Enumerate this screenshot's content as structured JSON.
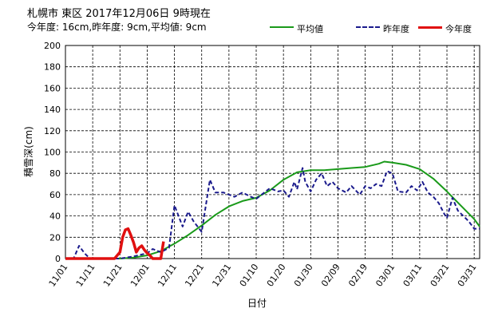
{
  "header": {
    "title": "札幌市  東区  2017年12月06日 9時現在",
    "subtitle": "今年度: 16cm,昨年度:  9cm,平均値:  9cm"
  },
  "colors": {
    "average": "#1a9a1a",
    "last_year": "#1a1a8c",
    "this_year": "#e01010",
    "grid": "#000000"
  },
  "chart_data": {
    "type": "line",
    "title": "",
    "ylabel": "積雪深(cm)",
    "xlabel": "日付",
    "ylim": [
      0,
      200
    ],
    "yticks": [
      0,
      20,
      40,
      60,
      80,
      100,
      120,
      140,
      160,
      180,
      200
    ],
    "xticks": [
      "11/01",
      "11/11",
      "11/21",
      "12/01",
      "12/11",
      "12/21",
      "12/31",
      "01/10",
      "01/20",
      "01/30",
      "02/09",
      "02/19",
      "03/01",
      "03/11",
      "03/21",
      "03/31"
    ],
    "xlim_days": [
      0,
      152
    ],
    "legend": [
      "平均値",
      "昨年度",
      "今年度"
    ],
    "series": [
      {
        "name": "平均値",
        "style": "solid",
        "x": [
          0,
          20,
          25,
          30,
          35,
          40,
          45,
          50,
          55,
          60,
          65,
          70,
          75,
          80,
          85,
          90,
          95,
          100,
          105,
          110,
          115,
          117,
          120,
          125,
          130,
          135,
          140,
          145,
          150,
          152
        ],
        "y": [
          0,
          0,
          1,
          3,
          7,
          14,
          22,
          31,
          41,
          49,
          54,
          57,
          64,
          74,
          81,
          83,
          83,
          84,
          85,
          86,
          89,
          91,
          90,
          88,
          84,
          75,
          63,
          50,
          37,
          30
        ]
      },
      {
        "name": "昨年度",
        "style": "dashed",
        "x": [
          0,
          3,
          5,
          7,
          9,
          11,
          20,
          25,
          30,
          32,
          35,
          38,
          40,
          43,
          45,
          47,
          50,
          53,
          55,
          58,
          62,
          65,
          68,
          70,
          72,
          75,
          78,
          80,
          82,
          84,
          85,
          87,
          88,
          90,
          92,
          94,
          96,
          98,
          100,
          103,
          105,
          108,
          110,
          112,
          114,
          116,
          118,
          120,
          122,
          125,
          127,
          129,
          131,
          133,
          135,
          137,
          139,
          140,
          142,
          144,
          146,
          148,
          150,
          152
        ],
        "y": [
          0,
          0,
          12,
          5,
          0,
          0,
          0,
          2,
          5,
          9,
          6,
          10,
          50,
          30,
          44,
          35,
          25,
          74,
          62,
          62,
          58,
          62,
          58,
          56,
          60,
          66,
          63,
          64,
          58,
          72,
          65,
          85,
          72,
          63,
          74,
          80,
          68,
          72,
          66,
          62,
          68,
          60,
          68,
          66,
          70,
          68,
          82,
          80,
          63,
          62,
          68,
          64,
          72,
          62,
          58,
          52,
          42,
          38,
          57,
          45,
          40,
          35,
          28,
          28
        ]
      },
      {
        "name": "今年度",
        "style": "solid",
        "x": [
          0,
          5,
          10,
          15,
          18,
          20,
          21,
          22,
          23,
          24,
          25,
          26,
          27,
          28,
          29,
          30,
          31,
          32,
          33,
          34,
          35,
          36
        ],
        "y": [
          0,
          0,
          0,
          0,
          0,
          6,
          20,
          27,
          28,
          22,
          15,
          6,
          10,
          12,
          8,
          5,
          3,
          0,
          0,
          0,
          0,
          16
        ]
      }
    ]
  }
}
